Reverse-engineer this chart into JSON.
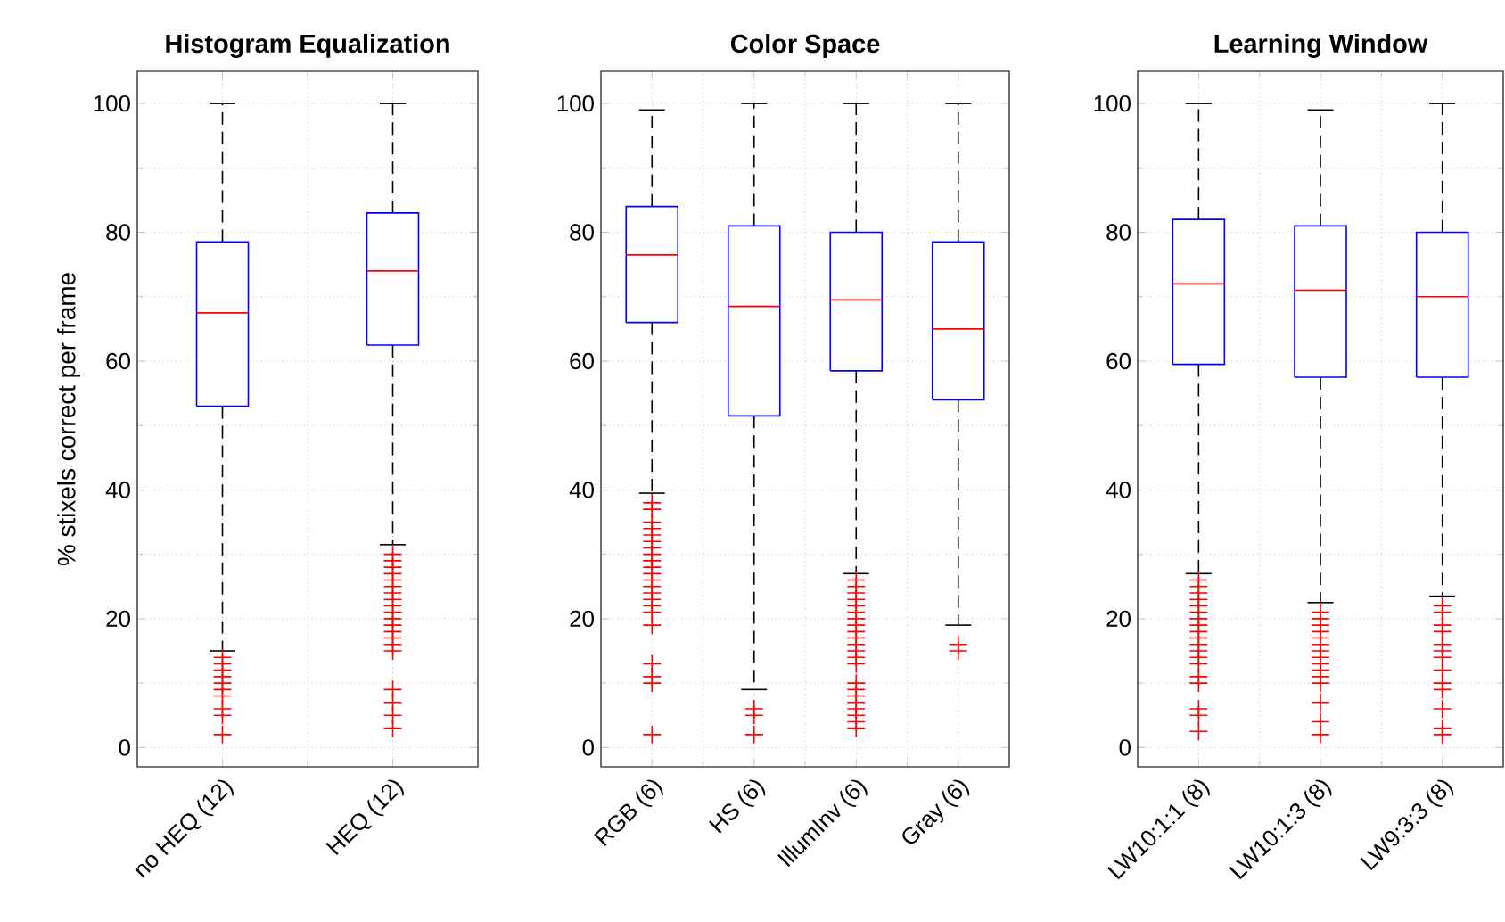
{
  "chart_data": [
    {
      "type": "box",
      "title": "Histogram Equalization",
      "ylabel": "% stixels correct per frame",
      "categories": [
        "no HEQ (12)",
        "HEQ (12)"
      ],
      "ylim": [
        -3,
        105
      ],
      "yticks": [
        0,
        20,
        40,
        60,
        80,
        100
      ],
      "grid": true,
      "color": "#0000ff",
      "boxes": [
        {
          "low": 15,
          "q1": 53,
          "median": 67.5,
          "q3": 78.5,
          "high": 100,
          "outliers": [
            14,
            13,
            12,
            11,
            10,
            9,
            8,
            6,
            5,
            2
          ]
        },
        {
          "low": 31.5,
          "q1": 62.5,
          "median": 74,
          "q3": 83,
          "high": 100,
          "outliers": [
            30,
            29,
            28,
            27,
            26,
            25,
            24,
            23,
            22,
            21,
            20,
            19,
            18,
            17,
            16,
            15,
            9,
            7,
            5,
            3
          ]
        }
      ]
    },
    {
      "type": "box",
      "title": "Color Space",
      "categories": [
        "RGB (6)",
        "HS (6)",
        "IllumInv (6)",
        "Gray (6)"
      ],
      "ylim": [
        -3,
        105
      ],
      "yticks": [
        0,
        20,
        40,
        60,
        80,
        100
      ],
      "grid": true,
      "color": "#0000ff",
      "boxes": [
        {
          "low": 39.5,
          "q1": 66,
          "median": 76.5,
          "q3": 84,
          "high": 99,
          "outliers": [
            38,
            37,
            35,
            34,
            33,
            32,
            31,
            30,
            29,
            28,
            27,
            26,
            25,
            24,
            23,
            22,
            21,
            19,
            13,
            11,
            10,
            2
          ]
        },
        {
          "low": 9,
          "q1": 51.5,
          "median": 68.5,
          "q3": 81,
          "high": 100,
          "outliers": [
            6,
            5,
            2
          ]
        },
        {
          "low": 27,
          "q1": 58.5,
          "median": 69.5,
          "q3": 80,
          "high": 100,
          "outliers": [
            26,
            25,
            24,
            23,
            22,
            21,
            20,
            19,
            18,
            17,
            16,
            15,
            14,
            13,
            10,
            9,
            8,
            7,
            6,
            5,
            4,
            3
          ]
        },
        {
          "low": 19,
          "q1": 54,
          "median": 65,
          "q3": 78.5,
          "high": 100,
          "outliers": [
            16,
            15
          ]
        }
      ]
    },
    {
      "type": "box",
      "title": "Learning Window",
      "categories": [
        "LW10:1:1 (8)",
        "LW10:1:3 (8)",
        "LW9:3:3 (8)"
      ],
      "ylim": [
        -3,
        105
      ],
      "yticks": [
        0,
        20,
        40,
        60,
        80,
        100
      ],
      "grid": true,
      "color": "#0000ff",
      "boxes": [
        {
          "low": 27,
          "q1": 59.5,
          "median": 72,
          "q3": 82,
          "high": 100,
          "outliers": [
            26,
            25,
            24,
            23,
            22,
            21,
            20,
            19,
            18,
            17,
            16,
            15,
            14,
            13,
            11,
            10,
            6,
            5,
            2.5
          ]
        },
        {
          "low": 22.5,
          "q1": 57.5,
          "median": 71,
          "q3": 81,
          "high": 99,
          "outliers": [
            21,
            20,
            19,
            18,
            17,
            16,
            15,
            14,
            13,
            12,
            11,
            10,
            7,
            4,
            2
          ]
        },
        {
          "low": 23.5,
          "q1": 57.5,
          "median": 70,
          "q3": 80,
          "high": 100,
          "outliers": [
            22,
            21,
            19,
            18,
            16,
            15,
            14,
            12,
            10,
            9,
            6,
            3,
            2
          ]
        }
      ]
    }
  ]
}
